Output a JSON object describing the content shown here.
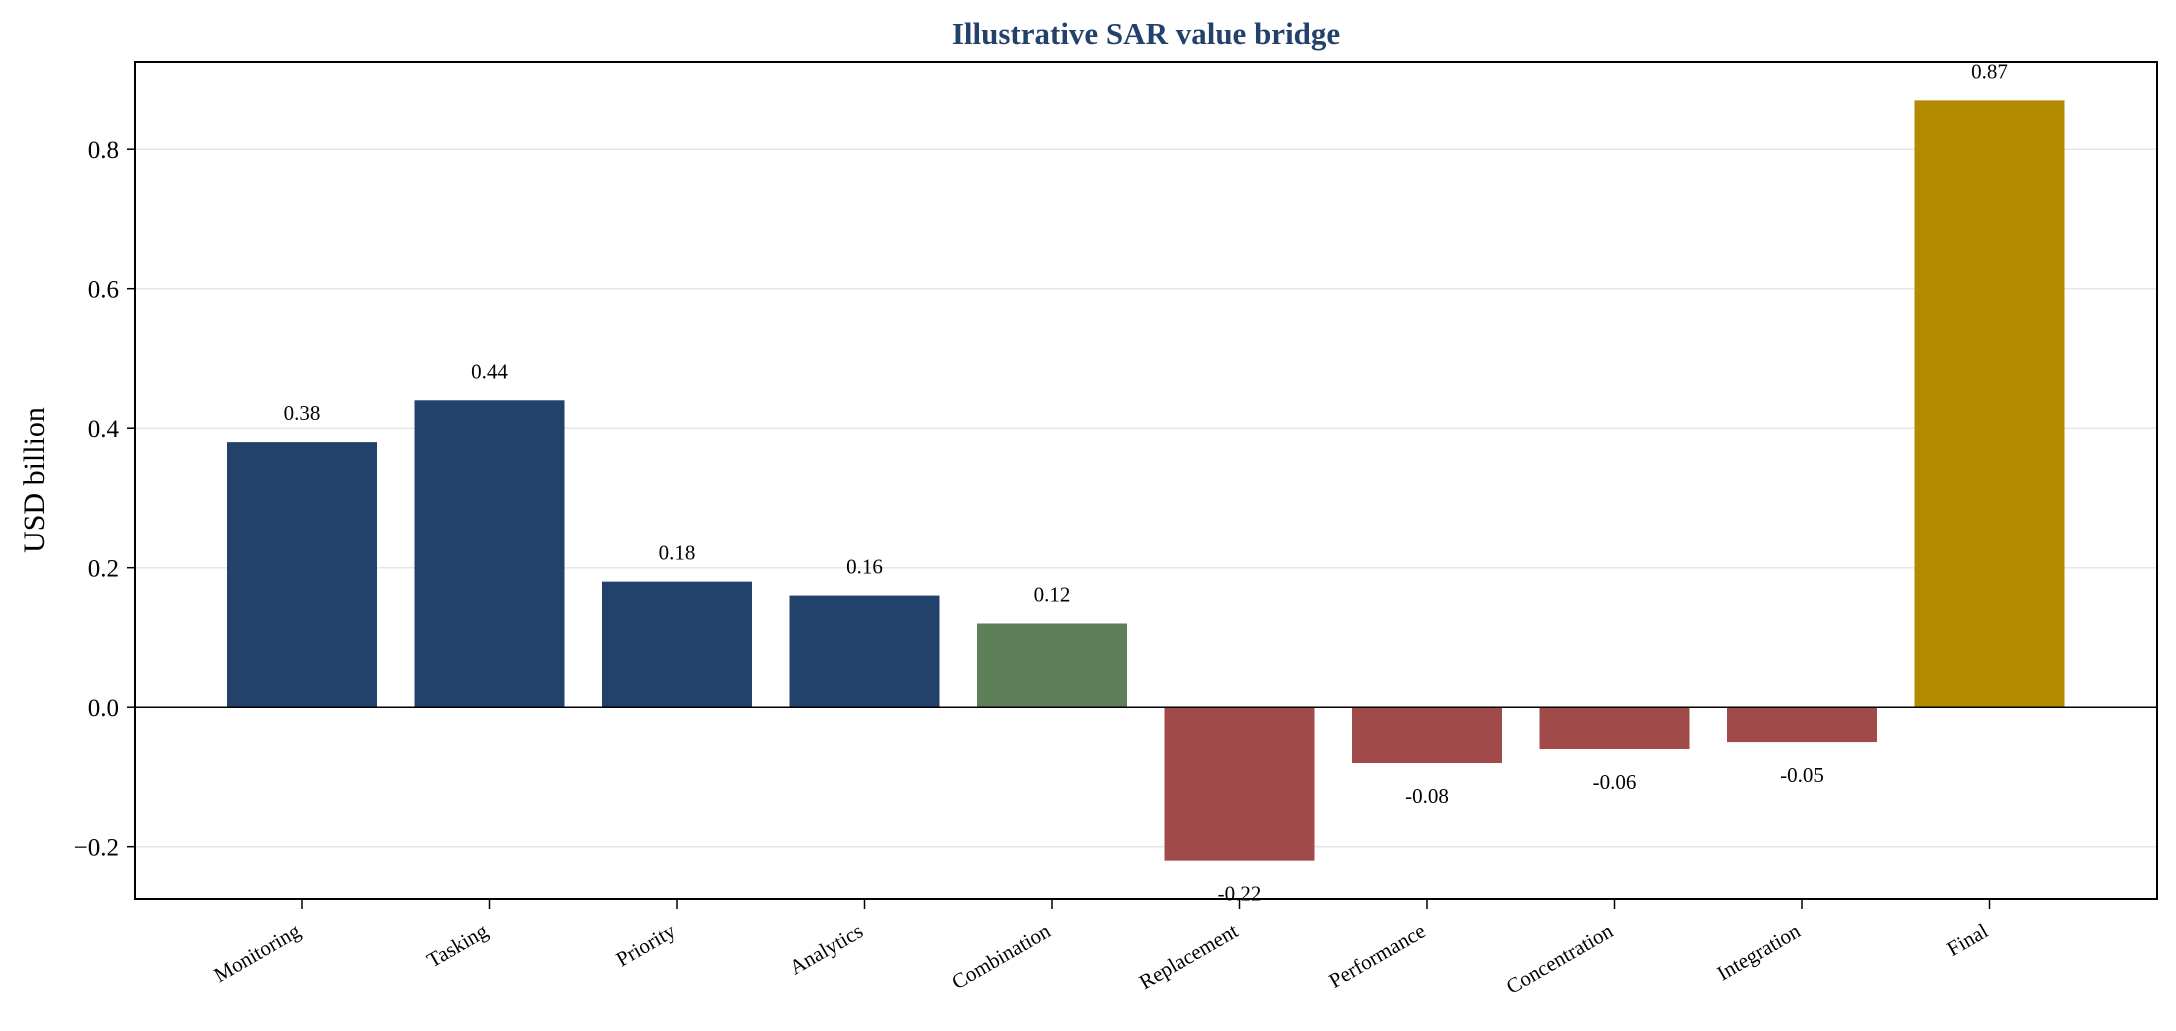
{
  "chart_data": {
    "type": "bar",
    "title": "Illustrative SAR value bridge",
    "ylabel": "USD billion",
    "xlabel": "",
    "categories": [
      "Monitoring",
      "Tasking",
      "Priority",
      "Analytics",
      "Combination",
      "Replacement",
      "Performance",
      "Concentration",
      "Integration",
      "Final"
    ],
    "values": [
      0.38,
      0.44,
      0.18,
      0.16,
      0.12,
      -0.22,
      -0.08,
      -0.06,
      -0.05,
      0.87
    ],
    "data_labels": [
      "0.38",
      "0.44",
      "0.18",
      "0.16",
      "0.12",
      "-0.22",
      "-0.08",
      "-0.06",
      "-0.05",
      "0.87"
    ],
    "bar_colors": [
      "#22416b",
      "#22416b",
      "#22416b",
      "#22416b",
      "#5e7f5a",
      "#a04b4a",
      "#a04b4a",
      "#a04b4a",
      "#a04b4a",
      "#b38a00"
    ],
    "title_color": "#22416b",
    "ylim": [
      -0.275,
      0.925
    ],
    "yticks": [
      -0.2,
      0.0,
      0.2,
      0.4,
      0.6,
      0.8
    ],
    "ytick_labels": [
      "−0.2",
      "0.0",
      "0.2",
      "0.4",
      "0.6",
      "0.8"
    ],
    "grid": "horizontal",
    "legend": "none"
  }
}
